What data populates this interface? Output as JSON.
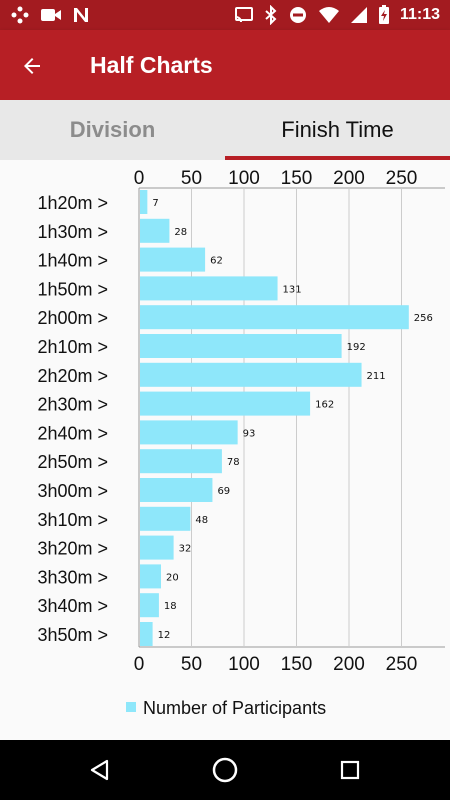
{
  "status_bar": {
    "time": "11:13",
    "icons": [
      "game-controller-icon",
      "video-camera-icon",
      "n-logo-icon",
      "cast-icon",
      "bluetooth-icon",
      "do-not-disturb-icon",
      "wifi-icon",
      "signal-icon",
      "battery-charging-icon"
    ]
  },
  "app_bar": {
    "title": "Half Charts",
    "back_icon": "arrow-left-icon"
  },
  "tabs": [
    {
      "label": "Division",
      "selected": false
    },
    {
      "label": "Finish Time",
      "selected": true
    }
  ],
  "chart_data": {
    "type": "bar",
    "orientation": "horizontal",
    "categories": [
      "1h20m >",
      "1h30m >",
      "1h40m >",
      "1h50m >",
      "2h00m >",
      "2h10m >",
      "2h20m >",
      "2h30m >",
      "2h40m >",
      "2h50m >",
      "3h00m >",
      "3h10m >",
      "3h20m >",
      "3h30m >",
      "3h40m >",
      "3h50m >"
    ],
    "series": [
      {
        "name": "Number of Participants",
        "values": [
          7,
          28,
          62,
          131,
          256,
          192,
          211,
          162,
          93,
          78,
          69,
          48,
          32,
          20,
          18,
          12
        ],
        "color": "#8ee7fa"
      }
    ],
    "xlim": [
      0,
      280
    ],
    "x_ticks": [
      "0",
      "50",
      "100",
      "150",
      "200",
      "250"
    ],
    "grid": true,
    "legend": "bottom-left",
    "gridline_color": "#cccccc"
  },
  "nav_bar": {
    "icons": [
      "back-triangle-icon",
      "home-circle-icon",
      "recents-square-icon"
    ]
  }
}
